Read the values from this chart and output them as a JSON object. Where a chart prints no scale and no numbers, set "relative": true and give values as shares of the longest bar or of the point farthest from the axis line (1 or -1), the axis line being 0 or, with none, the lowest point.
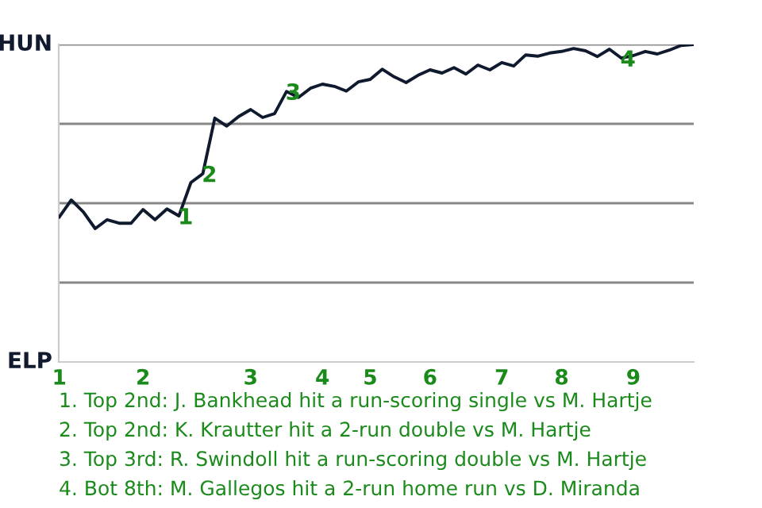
{
  "chart_data": {
    "type": "line",
    "relative": true,
    "categories": [
      "1",
      null,
      null,
      null,
      null,
      null,
      null,
      "2",
      null,
      null,
      null,
      null,
      null,
      null,
      null,
      null,
      "3",
      null,
      null,
      null,
      null,
      null,
      "4",
      null,
      null,
      null,
      "5",
      null,
      null,
      null,
      null,
      "6",
      null,
      null,
      null,
      null,
      null,
      "7",
      null,
      null,
      null,
      null,
      "8",
      null,
      null,
      null,
      null,
      null,
      "9",
      null,
      null,
      null,
      null,
      null
    ],
    "series": [
      {
        "color": "#0f1a2e",
        "values": [
          0.457,
          0.51,
          0.473,
          0.42,
          0.448,
          0.437,
          0.437,
          0.48,
          0.448,
          0.482,
          0.46,
          0.565,
          0.593,
          0.768,
          0.743,
          0.773,
          0.795,
          0.77,
          0.782,
          0.852,
          0.833,
          0.862,
          0.875,
          0.868,
          0.853,
          0.882,
          0.89,
          0.922,
          0.898,
          0.88,
          0.903,
          0.92,
          0.91,
          0.927,
          0.907,
          0.935,
          0.92,
          0.943,
          0.932,
          0.967,
          0.963,
          0.973,
          0.978,
          0.987,
          0.98,
          0.962,
          0.985,
          0.957,
          0.965,
          0.978,
          0.97,
          0.982,
          0.997,
          1
        ]
      }
    ],
    "grid": "y",
    "annotations": [
      {
        "text": "1",
        "y": 0.46
      },
      {
        "text": "2",
        "y": 0.593
      },
      {
        "text": "3",
        "y": 0.852
      },
      {
        "text": "4",
        "y": 0.957
      },
      "HUN",
      "ELP",
      "1. Top 2nd: J. Bankhead hit a run-scoring single vs M. Hartje",
      "2. Top 2nd: K. Krautter hit a 2-run double vs M. Hartje",
      "3. Top 3rd: R. Swindoll hit a run-scoring double vs M. Hartje",
      "4. Bot 8th: M. Gallegos hit a 2-run home run vs D. Miranda"
    ]
  }
}
